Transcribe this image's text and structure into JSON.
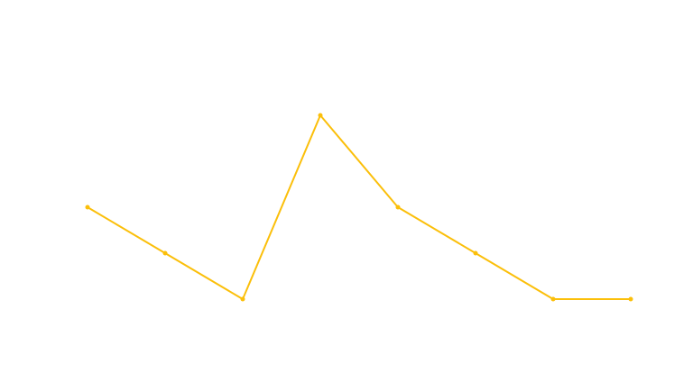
{
  "chart_data": {
    "type": "line",
    "x": [
      1,
      2,
      3,
      4,
      5,
      6,
      7,
      8
    ],
    "series": [
      {
        "values": [
          2,
          1,
          0,
          4,
          2,
          1,
          0,
          0
        ],
        "color": "#fbbf0a"
      }
    ],
    "ylim": [
      -2,
      6
    ],
    "grid": false,
    "axes_visible": false,
    "markers": true
  }
}
